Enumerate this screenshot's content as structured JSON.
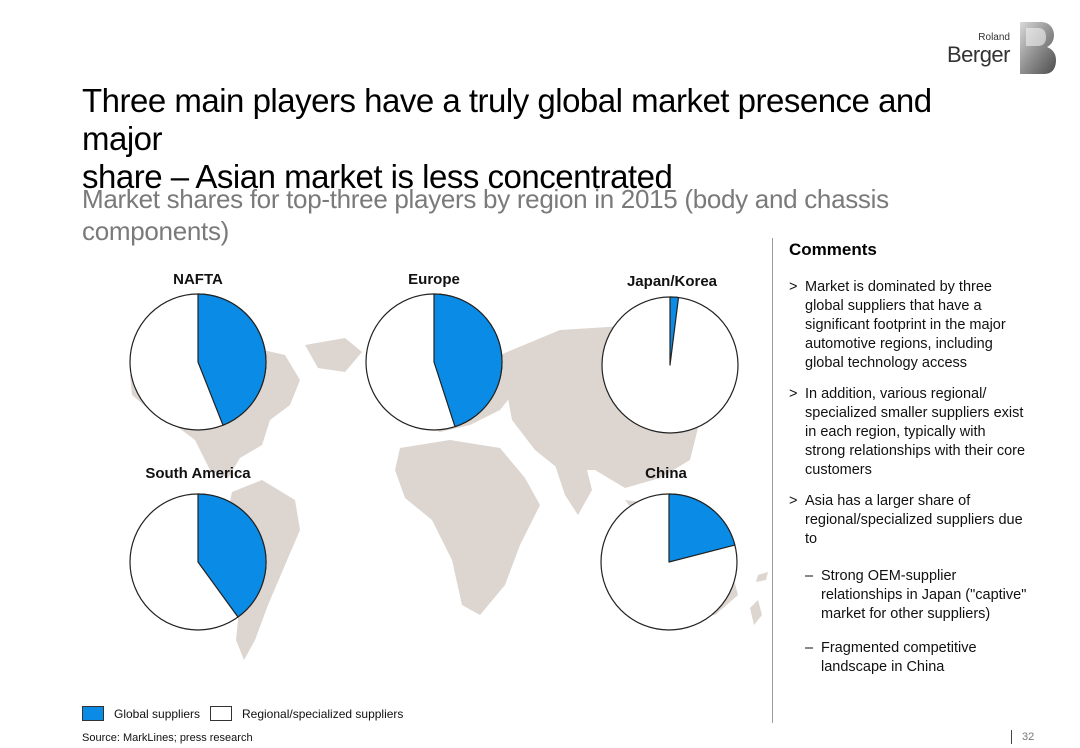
{
  "header": {
    "logo_line1": "Roland",
    "logo_line2": "Berger"
  },
  "title_line1": "Three main players have a truly global market presence and major",
  "title_line2": "share – Asian market is less concentrated",
  "subtitle": "Market shares for top-three players by region in 2015 (body and chassis components)",
  "colors": {
    "global": "#0a8ce6",
    "regional": "#ffffff",
    "map": "#ddd5cf",
    "outline": "#222222"
  },
  "chart_data": {
    "type": "pie",
    "series_labels": [
      "Global suppliers",
      "Regional/specialized suppliers"
    ],
    "pies": [
      {
        "region": "NAFTA",
        "global_share": 44,
        "regional_share": 56
      },
      {
        "region": "Europe",
        "global_share": 45,
        "regional_share": 55
      },
      {
        "region": "Japan/Korea",
        "global_share": 2,
        "regional_share": 98
      },
      {
        "region": "South America",
        "global_share": 40,
        "regional_share": 60
      },
      {
        "region": "China",
        "global_share": 21,
        "regional_share": 79
      }
    ]
  },
  "comments": {
    "heading": "Comments",
    "bullets": [
      {
        "mark": ">",
        "text": "Market is dominated by three global suppliers that have a significant footprint in the major automotive regions, including global technology access"
      },
      {
        "mark": ">",
        "text": "In addition, various regional/ specialized smaller suppliers exist in each region, typically with strong relationships with their core customers"
      },
      {
        "mark": ">",
        "text": "Asia has a larger share of regional/specialized suppliers due to"
      }
    ],
    "sub_bullets": [
      {
        "mark": "–",
        "text": "Strong OEM-supplier relationships in Japan (\"captive\" market for other suppliers)"
      },
      {
        "mark": "–",
        "text": "Fragmented competitive landscape in China"
      }
    ]
  },
  "legend": {
    "global_label": "Global suppliers",
    "regional_label": "Regional/specialized suppliers"
  },
  "footer": {
    "source": "Source: MarkLines; press research",
    "page": "32"
  }
}
